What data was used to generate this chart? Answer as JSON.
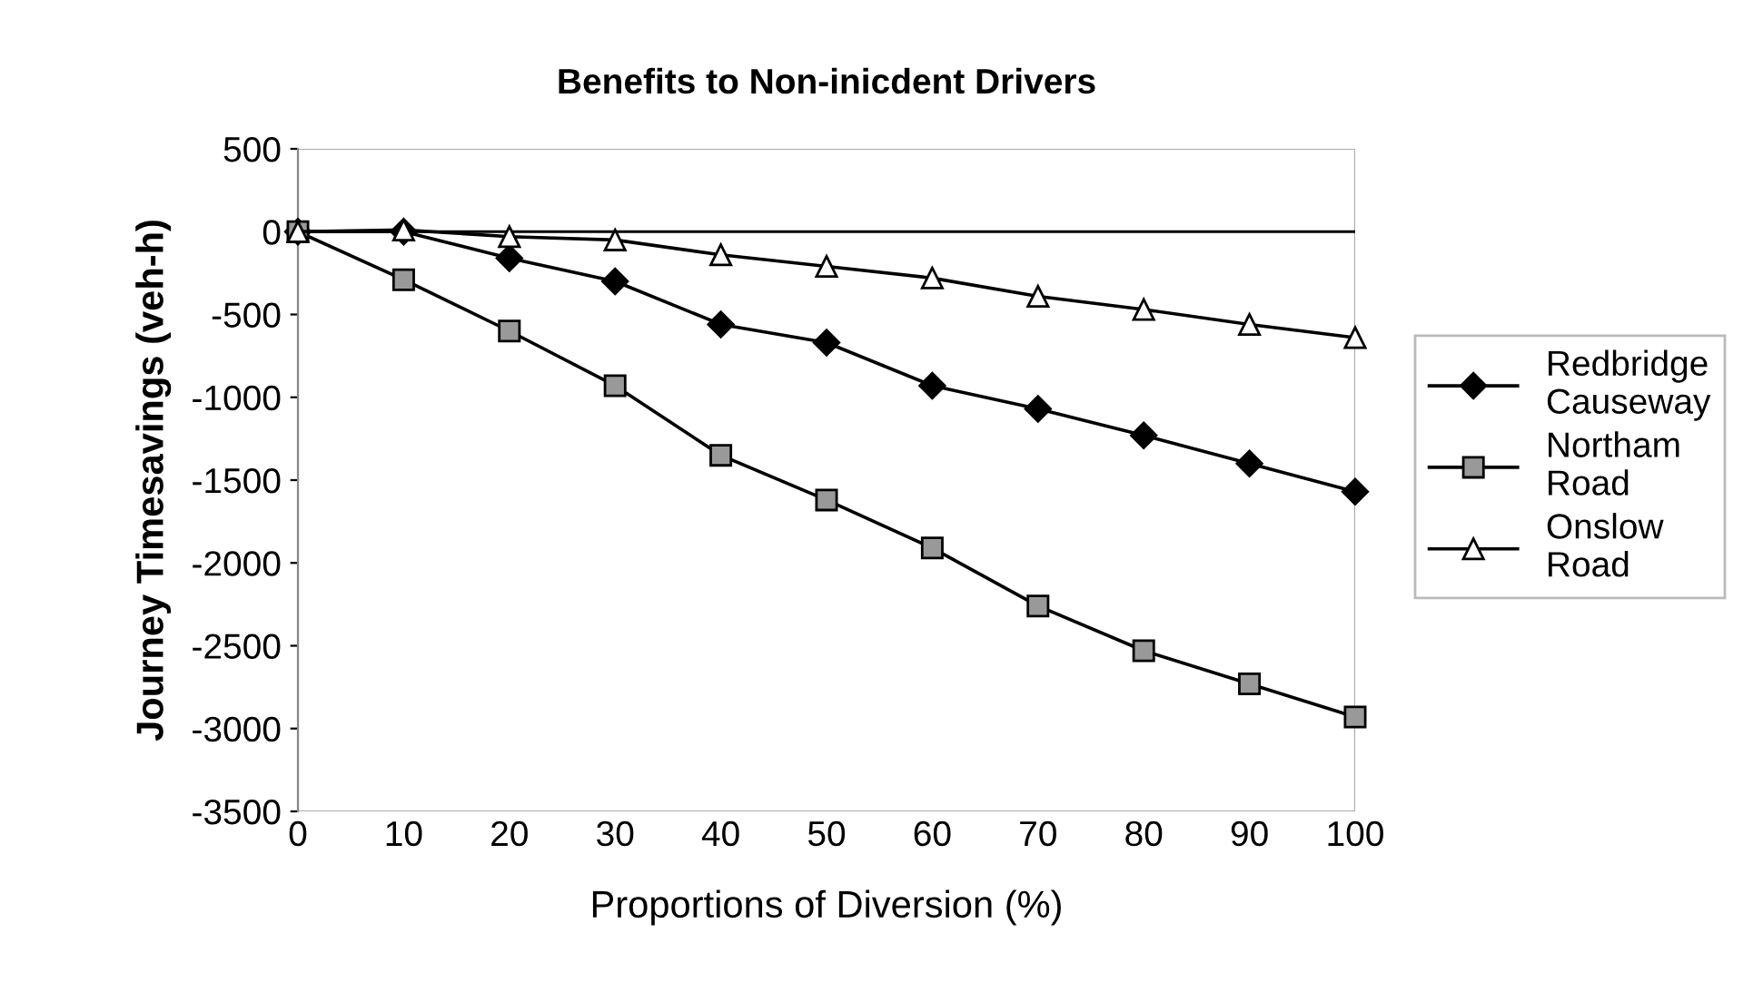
{
  "chart_data": {
    "type": "line",
    "title": "Benefits to Non-inicdent Drivers",
    "xlabel": "Proportions of Diversion (%)",
    "ylabel": "Journey Timesavings (veh-h)",
    "x": [
      0,
      10,
      20,
      30,
      40,
      50,
      60,
      70,
      80,
      90,
      100
    ],
    "series": [
      {
        "name": "Redbridge Causeway",
        "color": "#000000",
        "marker": "diamond",
        "values": [
          0,
          0,
          -160,
          -300,
          -560,
          -670,
          -930,
          -1070,
          -1230,
          -1400,
          -1570
        ]
      },
      {
        "name": "Northam Road",
        "color": "#999999",
        "marker": "square",
        "values": [
          0,
          -290,
          -600,
          -930,
          -1350,
          -1620,
          -1910,
          -2260,
          -2530,
          -2730,
          -2930
        ]
      },
      {
        "name": "Onslow Road",
        "color": "#ffffff",
        "marker": "triangle",
        "values": [
          0,
          10,
          -30,
          -50,
          -140,
          -210,
          -280,
          -390,
          -470,
          -560,
          -640
        ]
      }
    ],
    "xlim": [
      0,
      100
    ],
    "xticks": [
      0,
      10,
      20,
      30,
      40,
      50,
      60,
      70,
      80,
      90,
      100
    ],
    "ylim": [
      -3500,
      500
    ],
    "yticks": [
      500,
      0,
      -500,
      -1000,
      -1500,
      -2000,
      -2500,
      -3000,
      -3500
    ],
    "ref_lines": [
      {
        "axis": "y",
        "value": 0,
        "color": "#000000",
        "line_style": "solid"
      }
    ],
    "grid": false,
    "legend": "right",
    "line_style": "solid"
  }
}
